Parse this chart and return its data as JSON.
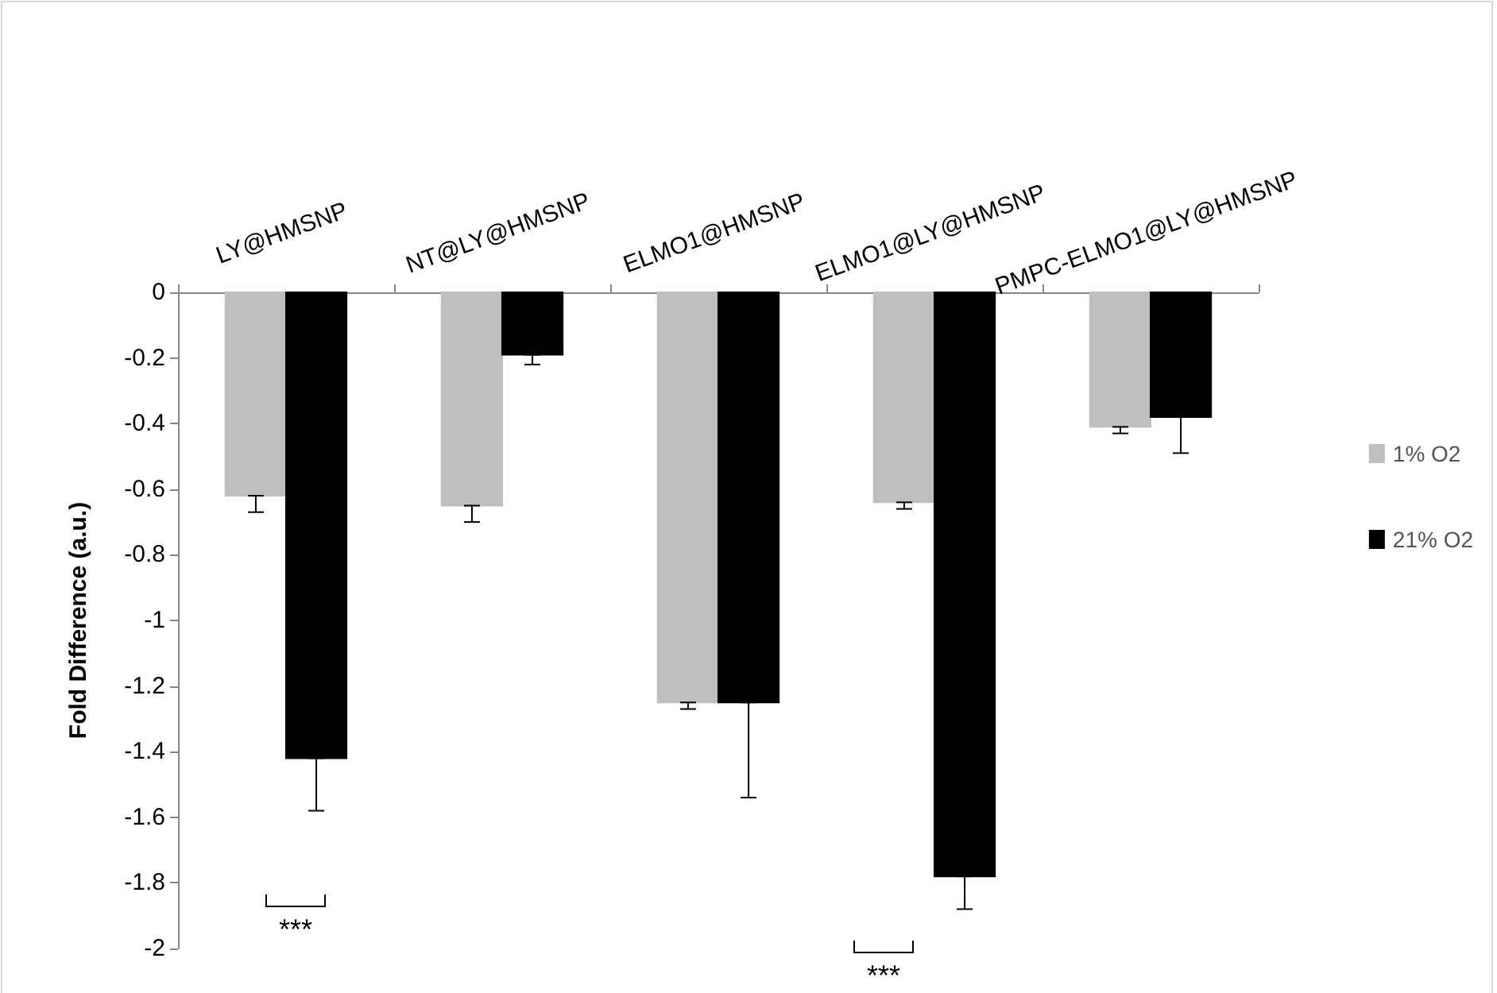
{
  "chart_data": {
    "type": "bar",
    "ylabel": "Fold Difference (a.u.)",
    "categories": [
      "LY@HMSNP",
      "NT@LY@HMSNP",
      "ELMO1@HMSNP",
      "ELMO1@LY@HMSNP",
      "PMPC-ELMO1@LY@HMSNP"
    ],
    "series": [
      {
        "name": "1% O2",
        "color": "#bfbfbf",
        "values": [
          -0.62,
          -0.65,
          -1.25,
          -0.64,
          -0.41
        ],
        "errors": [
          [
            -0.67,
            -0.62
          ],
          [
            -0.7,
            -0.65
          ],
          [
            -1.27,
            -1.25
          ],
          [
            -0.66,
            -0.64
          ],
          [
            -0.43,
            -0.41
          ]
        ]
      },
      {
        "name": "21% O2",
        "color": "#000000",
        "values": [
          -1.42,
          -0.19,
          -1.25,
          -1.78,
          -0.38
        ],
        "errors": [
          [
            -1.58,
            -1.42
          ],
          [
            -0.22,
            -0.19
          ],
          [
            -1.54,
            -1.25
          ],
          [
            -1.88,
            -1.78
          ],
          [
            -0.49,
            -0.38
          ]
        ]
      }
    ],
    "ylim": [
      -2,
      0
    ],
    "yticks": [
      0,
      -0.2,
      -0.4,
      -0.6,
      -0.8,
      -1,
      -1.2,
      -1.4,
      -1.6,
      -1.8,
      -2
    ],
    "legend": "right",
    "grid": false,
    "annotations": [
      "***",
      "***"
    ]
  }
}
